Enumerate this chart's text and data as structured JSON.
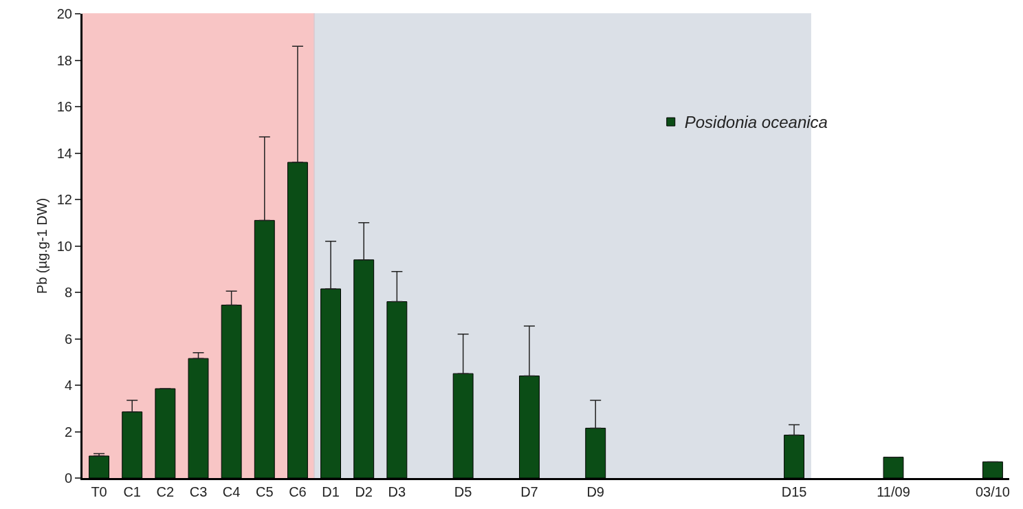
{
  "chart_data": {
    "type": "bar",
    "ylabel": "Pb (µg.g-1 DW)",
    "categories": [
      "T0",
      "C1",
      "C2",
      "C3",
      "C4",
      "C5",
      "C6",
      "D1",
      "D2",
      "D3",
      null,
      "D5",
      null,
      "D7",
      null,
      "D9",
      null,
      null,
      null,
      null,
      null,
      "D15",
      null,
      null,
      "11/09",
      null,
      null,
      "03/10"
    ],
    "series": [
      {
        "name": "Posidonia oceanica",
        "color": "#0b4d16",
        "values": [
          0.95,
          2.85,
          3.85,
          5.15,
          7.45,
          11.1,
          13.6,
          8.15,
          9.4,
          7.6,
          null,
          4.5,
          null,
          4.4,
          null,
          2.15,
          null,
          null,
          null,
          null,
          null,
          1.85,
          null,
          null,
          0.9,
          null,
          null,
          0.7
        ],
        "errors": [
          [
            0.95,
            1.05
          ],
          [
            2.85,
            3.35
          ],
          null,
          [
            5.15,
            5.4
          ],
          [
            7.45,
            8.05
          ],
          [
            11.1,
            14.7
          ],
          [
            13.6,
            18.6
          ],
          [
            8.15,
            10.2
          ],
          [
            9.4,
            11.0
          ],
          [
            7.6,
            8.9
          ],
          null,
          [
            4.5,
            6.2
          ],
          null,
          [
            4.4,
            6.55
          ],
          null,
          [
            2.15,
            3.35
          ],
          null,
          null,
          null,
          null,
          null,
          [
            1.85,
            2.3
          ],
          null,
          null,
          null,
          null,
          null,
          null
        ]
      }
    ],
    "bands": [
      {
        "axis": "x",
        "from": "T0",
        "to": "C6",
        "color": "#f4a0a0"
      },
      {
        "axis": "x",
        "from": "D1",
        "to": "D15",
        "color": "#c4ccd8"
      }
    ],
    "ylim": [
      0,
      20
    ],
    "yticks": [
      0,
      2,
      4,
      6,
      8,
      10,
      12,
      14,
      16,
      18,
      20
    ],
    "grid": false,
    "legend": "top right"
  }
}
